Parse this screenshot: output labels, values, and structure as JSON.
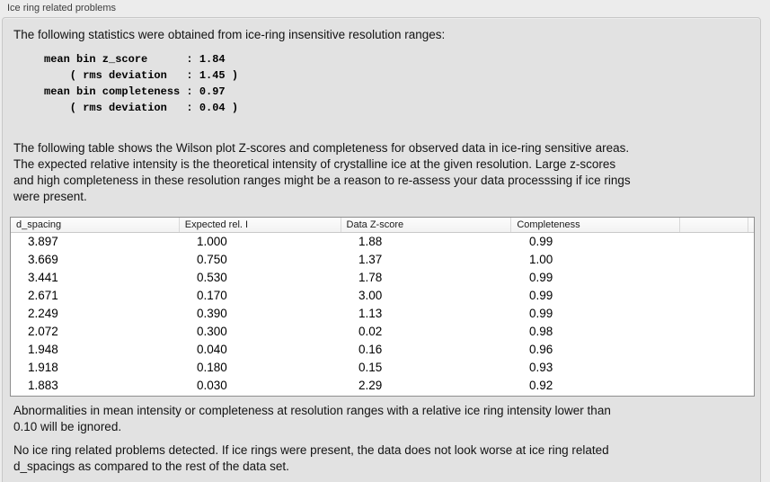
{
  "colors": {
    "page_bg": "#ececec",
    "panel_bg": "#e2e2e2",
    "panel_border": "#c7c7c7",
    "table_border": "#8e8e8e",
    "table_header_bg": "#f7f7f7",
    "text": "#131313"
  },
  "panel": {
    "title": "Ice ring related problems"
  },
  "intro": "The following statistics were obtained from ice-ring insensitive resolution ranges:",
  "stats": {
    "mean_bin_z_score": "1.84",
    "z_score_rms_deviation": "1.45",
    "mean_bin_completeness": "0.97",
    "completeness_rms_deviation": "0.04",
    "lines": "mean bin z_score      : 1.84\n    ( rms deviation   : 1.45 )\nmean bin completeness : 0.97\n    ( rms deviation   : 0.04 )"
  },
  "description": "The following table shows the Wilson plot Z-scores and completeness for observed data in ice-ring sensitive areas.\nThe expected relative intensity is the theoretical intensity of crystalline ice at the given resolution. Large z-scores\nand high completeness in these resolution ranges might be a reason to re-assess your data processsing if ice rings\nwere present.",
  "table": {
    "columns": [
      "d_spacing",
      "Expected rel. I",
      "Data Z-score",
      "Completeness"
    ],
    "rows": [
      [
        "3.897",
        "1.000",
        "1.88",
        "0.99"
      ],
      [
        "3.669",
        "0.750",
        "1.37",
        "1.00"
      ],
      [
        "3.441",
        "0.530",
        "1.78",
        "0.99"
      ],
      [
        "2.671",
        "0.170",
        "3.00",
        "0.99"
      ],
      [
        "2.249",
        "0.390",
        "1.13",
        "0.99"
      ],
      [
        "2.072",
        "0.300",
        "0.02",
        "0.98"
      ],
      [
        "1.948",
        "0.040",
        "0.16",
        "0.96"
      ],
      [
        "1.918",
        "0.180",
        "0.15",
        "0.93"
      ],
      [
        "1.883",
        "0.030",
        "2.29",
        "0.92"
      ]
    ]
  },
  "notes": {
    "ignore_rule": "Abnormalities in mean intensity or completeness at resolution ranges with a relative ice ring intensity lower than\n0.10 will be ignored.",
    "conclusion": "No ice ring related problems detected. If ice rings were present, the data does not look worse at ice ring related\nd_spacings as compared to the rest of the data set."
  }
}
